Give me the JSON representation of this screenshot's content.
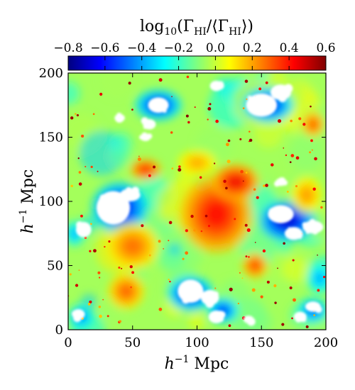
{
  "chart_data": {
    "type": "heatmap",
    "colorbar": {
      "label": "log10(Γ_HI/⟨Γ_HI⟩)",
      "range": [
        -0.8,
        0.6
      ],
      "ticks": [
        "−0.8",
        "−0.6",
        "−0.4",
        "−0.2",
        "0.0",
        "0.2",
        "0.4",
        "0.6"
      ],
      "colormap": [
        "#00007f",
        "#0000ff",
        "#007fff",
        "#00ffff",
        "#7fff7f",
        "#ffff00",
        "#ff7f00",
        "#ff0000",
        "#7f0000"
      ],
      "placement": "top"
    },
    "xlabel": "h⁻¹ Mpc",
    "ylabel": "h⁻¹ Mpc",
    "xlim": [
      0,
      200
    ],
    "ylim": [
      0,
      200
    ],
    "xticks": [
      "0",
      "50",
      "100",
      "150",
      "200"
    ],
    "yticks": [
      "0",
      "50",
      "100",
      "150",
      "200"
    ],
    "background_value": -0.05,
    "hot_regions": [
      {
        "x": 115,
        "y": 90,
        "rx": 28,
        "ry": 30,
        "value": 0.42
      },
      {
        "x": 130,
        "y": 115,
        "rx": 18,
        "ry": 14,
        "value": 0.45
      },
      {
        "x": 60,
        "y": 125,
        "rx": 12,
        "ry": 8,
        "value": 0.4
      },
      {
        "x": 50,
        "y": 65,
        "rx": 20,
        "ry": 18,
        "value": 0.28
      },
      {
        "x": 45,
        "y": 30,
        "rx": 14,
        "ry": 14,
        "value": 0.3
      },
      {
        "x": 145,
        "y": 50,
        "rx": 10,
        "ry": 10,
        "value": 0.35
      },
      {
        "x": 190,
        "y": 160,
        "rx": 9,
        "ry": 10,
        "value": 0.32
      },
      {
        "x": 185,
        "y": 105,
        "rx": 12,
        "ry": 14,
        "value": 0.22
      },
      {
        "x": 100,
        "y": 130,
        "rx": 15,
        "ry": 10,
        "value": 0.2
      }
    ],
    "cold_regions": [
      {
        "x": 155,
        "y": 175,
        "rx": 20,
        "ry": 14,
        "value": -0.6
      },
      {
        "x": 70,
        "y": 175,
        "rx": 18,
        "ry": 12,
        "value": -0.6
      },
      {
        "x": 40,
        "y": 95,
        "rx": 22,
        "ry": 20,
        "value": -0.65
      },
      {
        "x": 170,
        "y": 85,
        "rx": 22,
        "ry": 16,
        "value": -0.7
      },
      {
        "x": 95,
        "y": 28,
        "rx": 18,
        "ry": 14,
        "value": -0.6
      },
      {
        "x": 120,
        "y": 15,
        "rx": 12,
        "ry": 10,
        "value": -0.55
      },
      {
        "x": 195,
        "y": 40,
        "rx": 10,
        "ry": 12,
        "value": -0.4
      },
      {
        "x": 190,
        "y": 15,
        "rx": 12,
        "ry": 10,
        "value": -0.5
      },
      {
        "x": 10,
        "y": 10,
        "rx": 10,
        "ry": 10,
        "value": -0.45
      },
      {
        "x": 5,
        "y": 75,
        "rx": 8,
        "ry": 10,
        "value": -0.4
      }
    ],
    "masked_regions": [
      {
        "x": 150,
        "y": 175,
        "rx": 12,
        "ry": 9
      },
      {
        "x": 165,
        "y": 185,
        "rx": 8,
        "ry": 6
      },
      {
        "x": 70,
        "y": 175,
        "rx": 8,
        "ry": 6
      },
      {
        "x": 63,
        "y": 160,
        "rx": 5,
        "ry": 4
      },
      {
        "x": 35,
        "y": 95,
        "rx": 13,
        "ry": 13
      },
      {
        "x": 48,
        "y": 105,
        "rx": 8,
        "ry": 5
      },
      {
        "x": 12,
        "y": 78,
        "rx": 6,
        "ry": 6
      },
      {
        "x": 165,
        "y": 90,
        "rx": 10,
        "ry": 7
      },
      {
        "x": 190,
        "y": 80,
        "rx": 8,
        "ry": 5
      },
      {
        "x": 175,
        "y": 75,
        "rx": 7,
        "ry": 5
      },
      {
        "x": 95,
        "y": 30,
        "rx": 10,
        "ry": 9
      },
      {
        "x": 110,
        "y": 25,
        "rx": 7,
        "ry": 6
      },
      {
        "x": 115,
        "y": 10,
        "rx": 6,
        "ry": 5
      },
      {
        "x": 190,
        "y": 18,
        "rx": 6,
        "ry": 4
      },
      {
        "x": 8,
        "y": 12,
        "rx": 5,
        "ry": 4
      },
      {
        "x": 115,
        "y": 190,
        "rx": 5,
        "ry": 4
      },
      {
        "x": 165,
        "y": 115,
        "rx": 4,
        "ry": 3
      },
      {
        "x": 60,
        "y": 150,
        "rx": 4,
        "ry": 3
      },
      {
        "x": 180,
        "y": 10,
        "rx": 5,
        "ry": 4
      },
      {
        "x": 140,
        "y": 8,
        "rx": 4,
        "ry": 3
      },
      {
        "x": 40,
        "y": 165,
        "rx": 4,
        "ry": 3
      }
    ],
    "grid": false,
    "seed": 7
  }
}
